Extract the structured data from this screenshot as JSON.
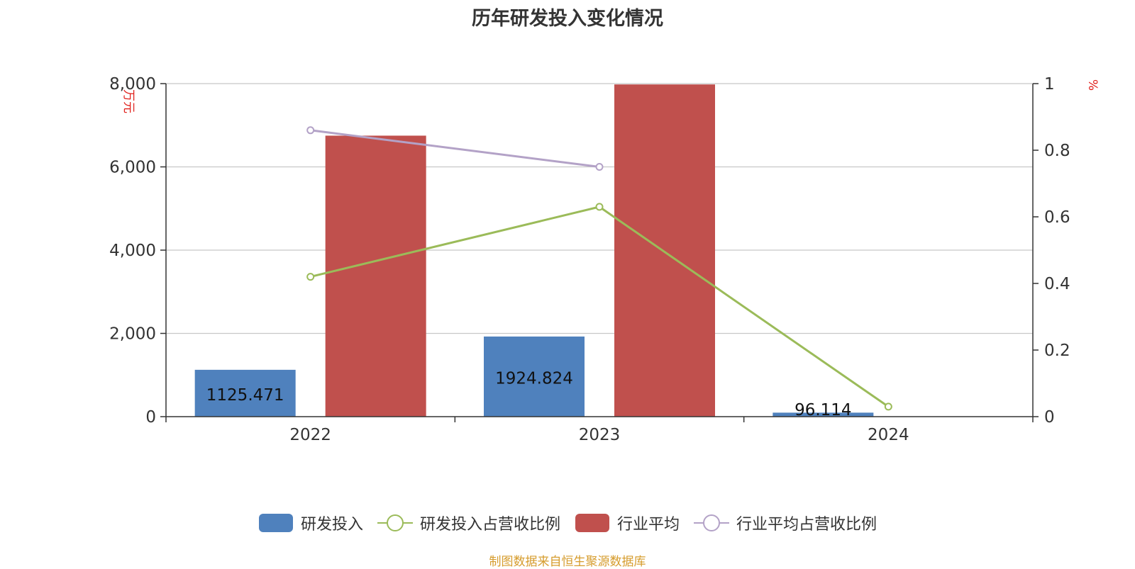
{
  "chart_data": {
    "type": "bar",
    "title": "历年研发投入变化情况",
    "categories": [
      "2022",
      "2023",
      "2024"
    ],
    "y_left": {
      "label": "万元",
      "ylim": [
        0,
        8000
      ],
      "ticks": [
        0,
        2000,
        4000,
        6000,
        8000
      ],
      "tick_labels": [
        "0",
        "2,000",
        "4,000",
        "6,000",
        "8,000"
      ]
    },
    "y_right": {
      "label": "%",
      "ylim": [
        0,
        1
      ],
      "ticks": [
        0,
        0.2,
        0.4,
        0.6,
        0.8,
        1
      ],
      "tick_labels": [
        "0",
        "0.2",
        "0.4",
        "0.6",
        "0.8",
        "1"
      ]
    },
    "series": [
      {
        "name": "研发投入",
        "type": "bar",
        "axis": "left",
        "color": "#4f81bd",
        "values": [
          1125.471,
          1924.824,
          96.114
        ],
        "data_labels": [
          "1125.471",
          "1924.824",
          "96.114"
        ]
      },
      {
        "name": "研发投入占营收比例",
        "type": "line",
        "axis": "right",
        "color": "#9bbb59",
        "values": [
          0.42,
          0.63,
          0.03
        ]
      },
      {
        "name": "行业平均",
        "type": "bar",
        "axis": "left",
        "color": "#c0504d",
        "values": [
          6750,
          7980,
          null
        ]
      },
      {
        "name": "行业平均占营收比例",
        "type": "line",
        "axis": "right",
        "color": "#b3a2c7",
        "values": [
          0.86,
          0.75,
          null
        ]
      }
    ],
    "grid": true,
    "legend_position": "bottom"
  },
  "source_note": "制图数据来自恒生聚源数据库"
}
